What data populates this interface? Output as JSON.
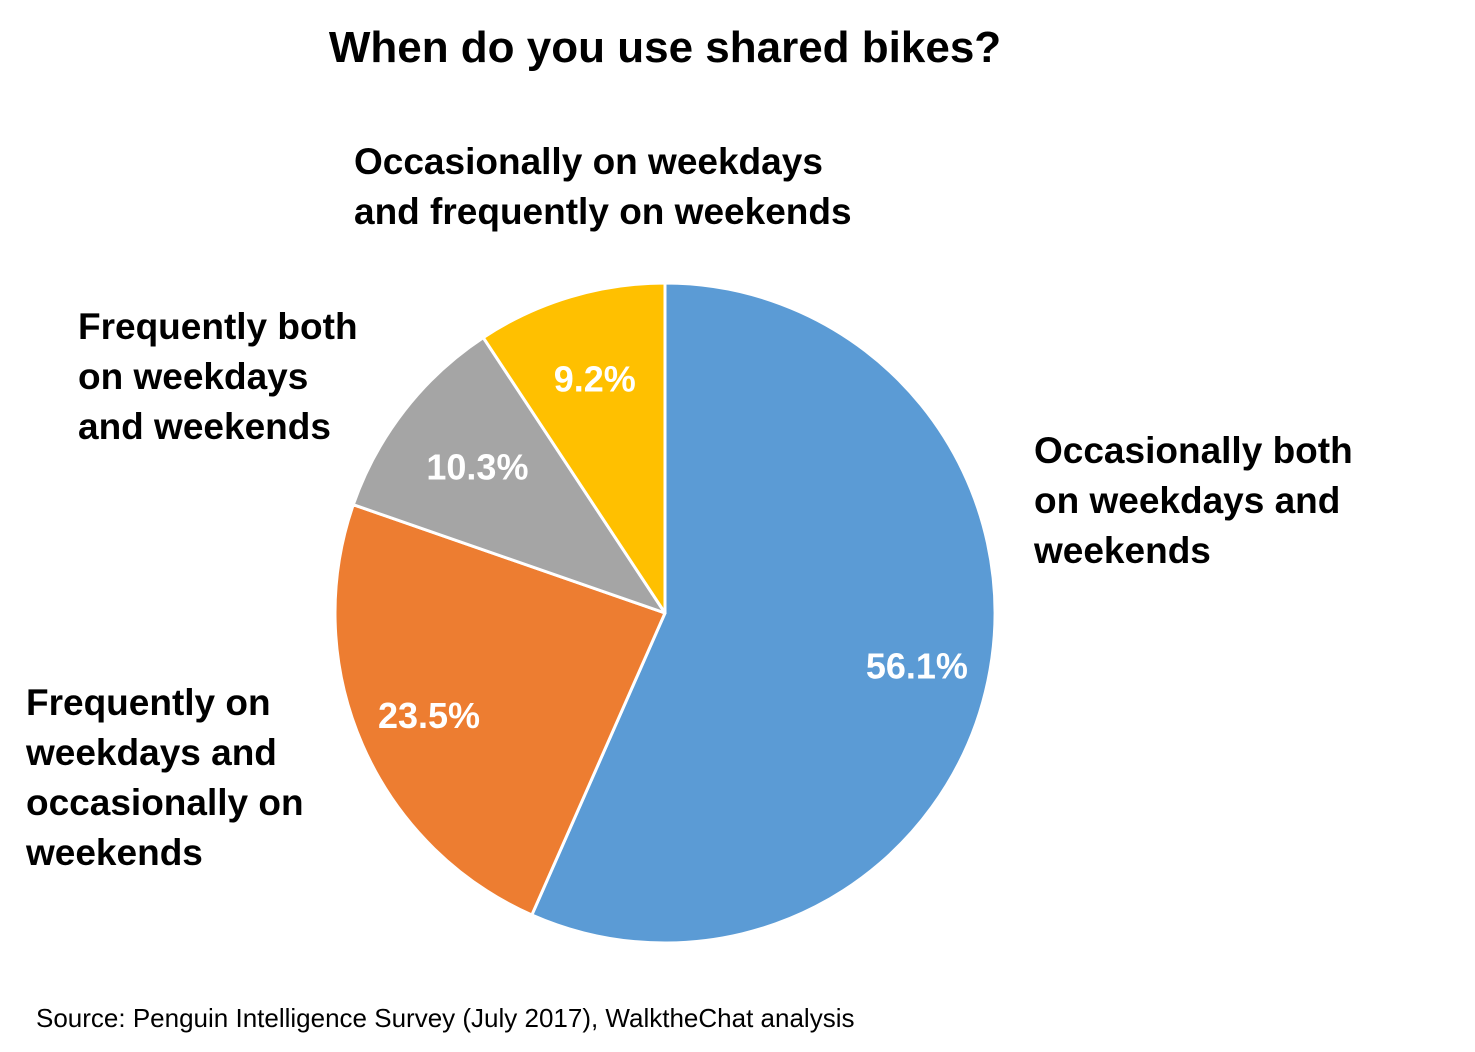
{
  "chart_data": {
    "type": "pie",
    "title": "When do you use shared bikes?",
    "slices": [
      {
        "label": "Occasionally  both\non weekdays and\nweekends",
        "value": 56.1,
        "value_label": "56.1%",
        "color": "#5B9BD5"
      },
      {
        "label": "Frequently on\nweekdays and\noccasionally on\nweekends",
        "value": 23.5,
        "value_label": "23.5%",
        "color": "#ED7D31"
      },
      {
        "label": "Frequently both\non weekdays\nand weekends",
        "value": 10.3,
        "value_label": "10.3%",
        "color": "#A5A5A5"
      },
      {
        "label": "Occasionally on weekdays\nand frequently on weekends",
        "value": 9.2,
        "value_label": "9.2%",
        "color": "#FFC000"
      }
    ],
    "start": "12 o'clock",
    "direction": "clockwise",
    "legend": "none"
  },
  "source": "Source: Penguin Intelligence Survey (July 2017), WalktheChat analysis"
}
